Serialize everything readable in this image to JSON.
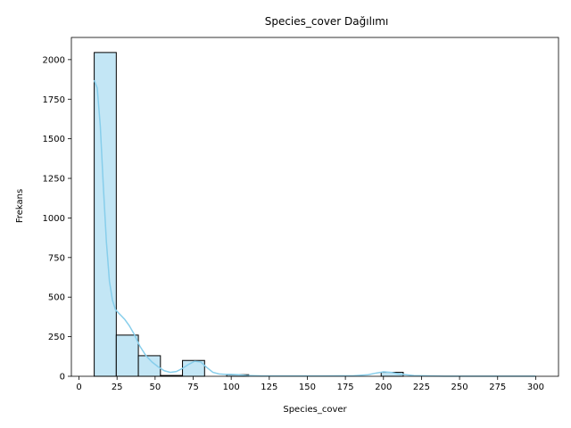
{
  "chart_data": {
    "type": "bar",
    "title": "Species_cover Dağılımı",
    "xlabel": "Species_cover",
    "ylabel": "Frekans",
    "xlim": [
      -5,
      315
    ],
    "ylim": [
      0,
      2140
    ],
    "xticks": [
      0,
      25,
      50,
      75,
      100,
      125,
      150,
      175,
      200,
      225,
      250,
      275,
      300
    ],
    "yticks": [
      0,
      250,
      500,
      750,
      1000,
      1250,
      1500,
      1750,
      2000
    ],
    "bins": [
      {
        "x0": 10.0,
        "x1": 24.5,
        "count": 2045
      },
      {
        "x0": 24.5,
        "x1": 39.0,
        "count": 260
      },
      {
        "x0": 39.0,
        "x1": 53.5,
        "count": 130
      },
      {
        "x0": 53.5,
        "x1": 68.0,
        "count": 5
      },
      {
        "x0": 68.0,
        "x1": 82.5,
        "count": 100
      },
      {
        "x0": 82.5,
        "x1": 97.0,
        "count": 0
      },
      {
        "x0": 97.0,
        "x1": 111.5,
        "count": 10
      },
      {
        "x0": 111.5,
        "x1": 126.0,
        "count": 0
      },
      {
        "x0": 126.0,
        "x1": 140.5,
        "count": 0
      },
      {
        "x0": 140.5,
        "x1": 155.0,
        "count": 0
      },
      {
        "x0": 155.0,
        "x1": 169.5,
        "count": 0
      },
      {
        "x0": 169.5,
        "x1": 184.0,
        "count": 0
      },
      {
        "x0": 184.0,
        "x1": 198.5,
        "count": 0
      },
      {
        "x0": 198.5,
        "x1": 213.0,
        "count": 25
      },
      {
        "x0": 213.0,
        "x1": 227.5,
        "count": 0
      },
      {
        "x0": 227.5,
        "x1": 242.0,
        "count": 0
      },
      {
        "x0": 242.0,
        "x1": 256.5,
        "count": 0
      },
      {
        "x0": 256.5,
        "x1": 271.0,
        "count": 0
      },
      {
        "x0": 271.0,
        "x1": 285.5,
        "count": 0
      },
      {
        "x0": 285.5,
        "x1": 300.0,
        "count": 0
      }
    ],
    "kde": {
      "x": [
        10,
        12,
        14,
        16,
        18,
        20,
        22,
        24,
        26,
        28,
        30,
        33,
        36,
        40,
        44,
        48,
        52,
        56,
        60,
        64,
        68,
        72,
        76,
        80,
        84,
        88,
        92,
        96,
        100,
        105,
        110,
        120,
        140,
        160,
        180,
        190,
        195,
        200,
        205,
        210,
        220,
        240,
        260,
        280,
        300
      ],
      "y": [
        1870,
        1820,
        1580,
        1200,
        850,
        600,
        480,
        420,
        400,
        380,
        360,
        320,
        270,
        190,
        130,
        90,
        60,
        35,
        25,
        30,
        50,
        75,
        95,
        90,
        55,
        25,
        15,
        12,
        12,
        10,
        5,
        2,
        2,
        2,
        3,
        10,
        20,
        28,
        25,
        15,
        4,
        1,
        1,
        1,
        1
      ]
    },
    "grid": false,
    "legend": "none"
  }
}
